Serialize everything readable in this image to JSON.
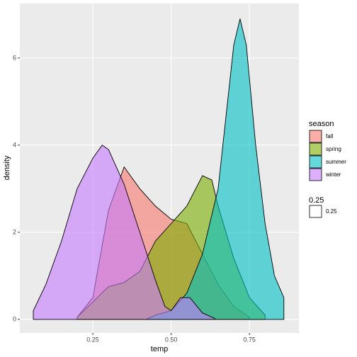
{
  "chart_data": {
    "type": "density",
    "x_label": "temp",
    "y_label": "density",
    "xlim": [
      0.017,
      0.908
    ],
    "ylim": [
      -0.31,
      7.25
    ],
    "xticks": [
      0.25,
      {
        "value": 0.5,
        "label": "0.50"
      },
      0.75
    ],
    "yticks": [
      0,
      2,
      4,
      6
    ],
    "grid": true,
    "legend_title": "season",
    "alpha_legend": {
      "title": "0.25",
      "label": "0.25"
    },
    "series": [
      {
        "name": "fall",
        "color": "#F8766D",
        "x": [
          0.2,
          0.25,
          0.3,
          0.35,
          0.4,
          0.45,
          0.5,
          0.55,
          0.6,
          0.65,
          0.7,
          0.75
        ],
        "values": [
          0.05,
          0.5,
          2.5,
          3.5,
          3.0,
          2.6,
          2.3,
          2.2,
          1.5,
          0.8,
          0.3,
          0.05
        ]
      },
      {
        "name": "spring",
        "color": "#7CAE00",
        "x": [
          0.2,
          0.25,
          0.3,
          0.35,
          0.4,
          0.45,
          0.5,
          0.55,
          0.6,
          0.63,
          0.65,
          0.7,
          0.75,
          0.8
        ],
        "values": [
          0.05,
          0.4,
          0.75,
          0.85,
          1.1,
          1.8,
          2.2,
          2.6,
          3.3,
          3.2,
          2.6,
          1.4,
          0.5,
          0.1
        ]
      },
      {
        "name": "summer",
        "color": "#00BFC4",
        "x": [
          0.42,
          0.45,
          0.5,
          0.55,
          0.6,
          0.65,
          0.7,
          0.72,
          0.74,
          0.77,
          0.8,
          0.83,
          0.86
        ],
        "values": [
          0,
          0.1,
          0.2,
          0.6,
          1.5,
          3.0,
          6.3,
          6.9,
          6.3,
          4.0,
          2.2,
          1.0,
          0.5
        ]
      },
      {
        "name": "winter",
        "color": "#C77CFF",
        "x": [
          0.06,
          0.1,
          0.15,
          0.2,
          0.25,
          0.28,
          0.3,
          0.35,
          0.4,
          0.45,
          0.48,
          0.5,
          0.53,
          0.56,
          0.6,
          0.64
        ],
        "values": [
          0.2,
          0.8,
          1.8,
          3.0,
          3.7,
          4.0,
          3.9,
          3.1,
          2.0,
          0.9,
          0.3,
          0.2,
          0.5,
          0.5,
          0.15,
          0.02
        ]
      }
    ]
  }
}
